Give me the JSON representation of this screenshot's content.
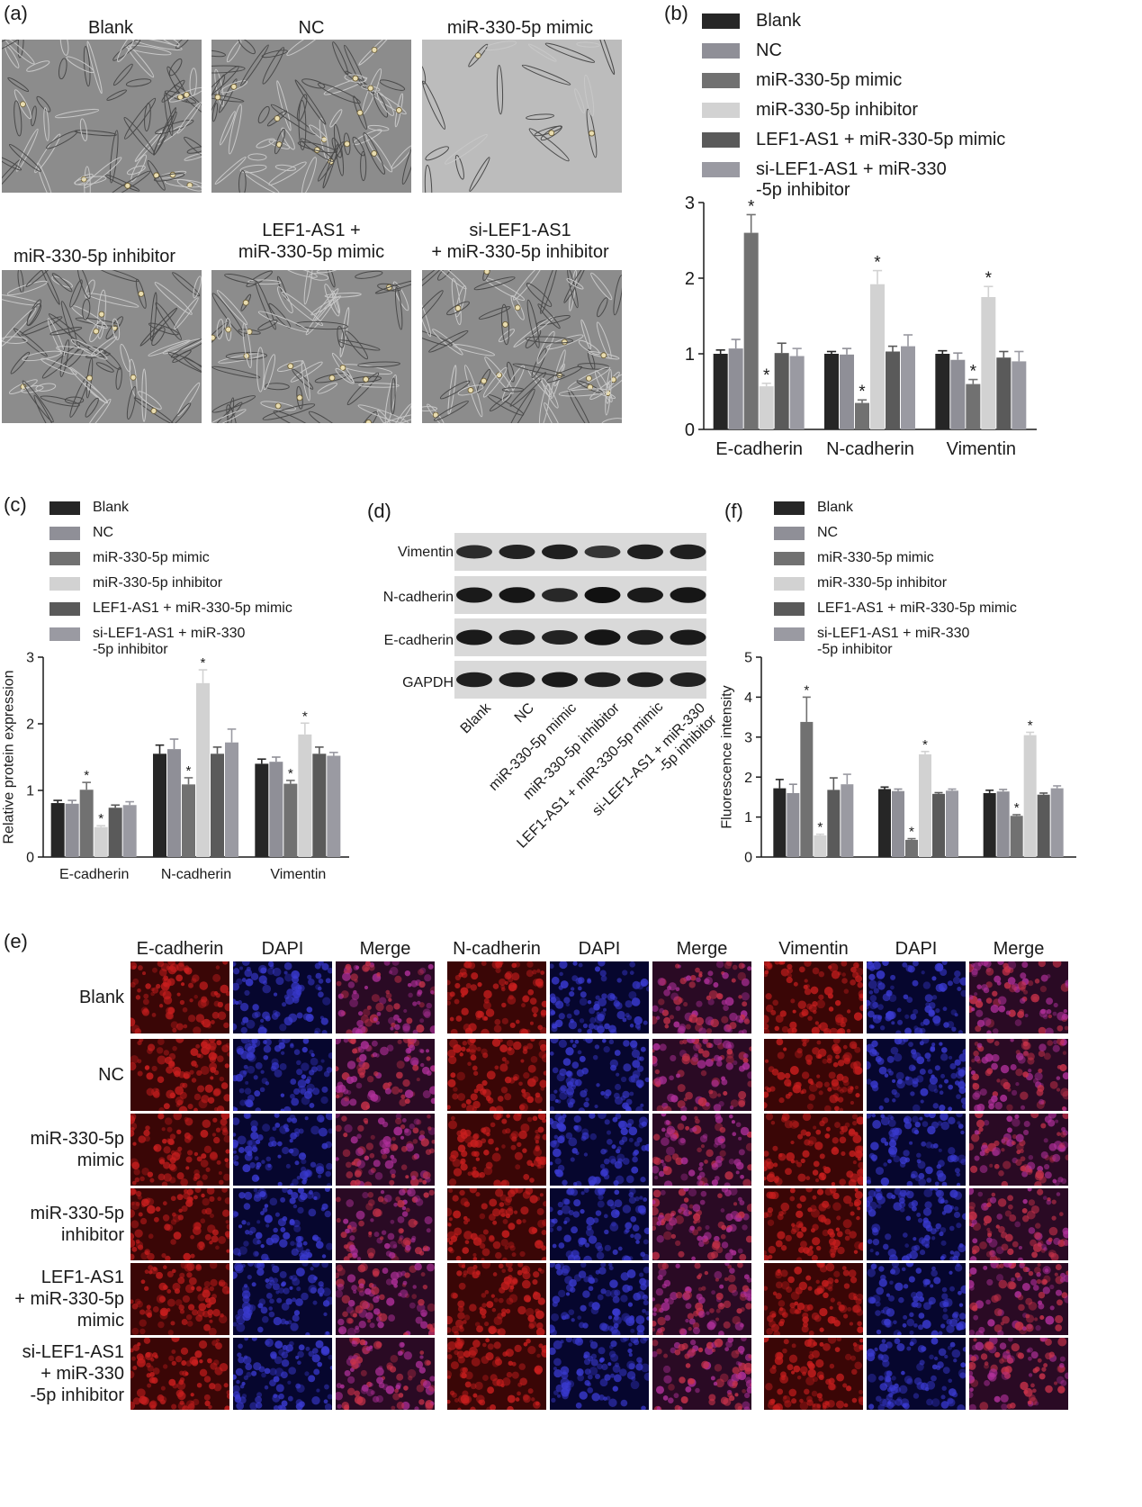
{
  "panel_labels": {
    "a": "(a)",
    "b": "(b)",
    "c": "(c)",
    "d": "(d)",
    "e": "(e)",
    "f": "(f)"
  },
  "panel_a": {
    "titles": [
      "Blank",
      "NC",
      "miR-330-5p mimic",
      "miR-330-5p inhibitor",
      "LEF1-AS1 +\nmiR-330-5p mimic",
      "si-LEF1-AS1\n+ miR-330-5p inhibitor"
    ]
  },
  "legend": [
    {
      "label": "Blank",
      "color": "#262626"
    },
    {
      "label": "NC",
      "color": "#8f8f97"
    },
    {
      "label": "miR-330-5p mimic",
      "color": "#717171"
    },
    {
      "label": "miR-330-5p inhibitor",
      "color": "#d2d2d2"
    },
    {
      "label": "LEF1-AS1 + miR-330-5p mimic",
      "color": "#5a5a5a"
    },
    {
      "label": "si-LEF1-AS1 + miR-330\n-5p inhibitor",
      "color": "#9a9aa2"
    }
  ],
  "colors": {
    "axis": "#1a1a1a",
    "dapi": "#3a3ad0",
    "cadherin": "#c81e1e"
  },
  "chart_data": [
    {
      "id": "b",
      "type": "bar",
      "categories": [
        "E-cadherin",
        "N-cadherin",
        "Vimentin"
      ],
      "series": [
        {
          "name": "Blank",
          "values": [
            1.0,
            1.0,
            1.0
          ],
          "errors": [
            0.05,
            0.03,
            0.04
          ]
        },
        {
          "name": "NC",
          "values": [
            1.07,
            0.99,
            0.92
          ],
          "errors": [
            0.12,
            0.08,
            0.09
          ]
        },
        {
          "name": "miR-330-5p mimic",
          "values": [
            2.6,
            0.35,
            0.6
          ],
          "errors": [
            0.24,
            0.04,
            0.06
          ]
        },
        {
          "name": "miR-330-5p inhibitor",
          "values": [
            0.57,
            1.92,
            1.75
          ],
          "errors": [
            0.04,
            0.18,
            0.14
          ]
        },
        {
          "name": "LEF1-AS1 + miR-330-5p mimic",
          "values": [
            1.01,
            1.03,
            0.95
          ],
          "errors": [
            0.13,
            0.07,
            0.08
          ]
        },
        {
          "name": "si-LEF1-AS1 + miR-330\n-5p inhibitor",
          "values": [
            0.97,
            1.1,
            0.9
          ],
          "errors": [
            0.1,
            0.15,
            0.13
          ]
        }
      ],
      "significant": [
        [
          false,
          false,
          true,
          true,
          false,
          false
        ],
        [
          false,
          false,
          true,
          true,
          false,
          false
        ],
        [
          false,
          false,
          true,
          true,
          false,
          false
        ]
      ],
      "ylim": [
        0,
        3
      ],
      "yticks": [
        "0",
        "1",
        "2",
        "3"
      ],
      "ylabel": "",
      "sig_mark": "*"
    },
    {
      "id": "c",
      "type": "bar",
      "categories": [
        "E-cadherin",
        "N-cadherin",
        "Vimentin"
      ],
      "series": [
        {
          "name": "Blank",
          "values": [
            0.81,
            1.55,
            1.4
          ],
          "errors": [
            0.04,
            0.13,
            0.07
          ]
        },
        {
          "name": "NC",
          "values": [
            0.8,
            1.62,
            1.43
          ],
          "errors": [
            0.05,
            0.15,
            0.07
          ]
        },
        {
          "name": "miR-330-5p mimic",
          "values": [
            1.01,
            1.09,
            1.1
          ],
          "errors": [
            0.11,
            0.1,
            0.05
          ]
        },
        {
          "name": "miR-330-5p inhibitor",
          "values": [
            0.45,
            2.61,
            1.84
          ],
          "errors": [
            0.02,
            0.2,
            0.17
          ]
        },
        {
          "name": "LEF1-AS1 + miR-330-5p mimic",
          "values": [
            0.74,
            1.55,
            1.55
          ],
          "errors": [
            0.04,
            0.1,
            0.1
          ]
        },
        {
          "name": "si-LEF1-AS1 + miR-330\n-5p inhibitor",
          "values": [
            0.78,
            1.72,
            1.52
          ],
          "errors": [
            0.05,
            0.2,
            0.05
          ]
        }
      ],
      "significant": [
        [
          false,
          false,
          true,
          true,
          false,
          false
        ],
        [
          false,
          false,
          true,
          true,
          false,
          false
        ],
        [
          false,
          false,
          true,
          true,
          false,
          false
        ]
      ],
      "ylim": [
        0,
        3
      ],
      "yticks": [
        "0",
        "1",
        "2",
        "3"
      ],
      "ylabel": "Relative protein expression",
      "sig_mark": "*"
    },
    {
      "id": "f",
      "type": "bar",
      "categories": [
        "",
        "",
        ""
      ],
      "series": [
        {
          "name": "Blank",
          "values": [
            1.72,
            1.7,
            1.6
          ],
          "errors": [
            0.22,
            0.05,
            0.07
          ]
        },
        {
          "name": "NC",
          "values": [
            1.6,
            1.65,
            1.64
          ],
          "errors": [
            0.22,
            0.05,
            0.05
          ]
        },
        {
          "name": "miR-330-5p mimic",
          "values": [
            3.38,
            0.43,
            1.03
          ],
          "errors": [
            0.62,
            0.03,
            0.03
          ]
        },
        {
          "name": "miR-330-5p inhibitor",
          "values": [
            0.54,
            2.57,
            3.05
          ],
          "errors": [
            0.03,
            0.07,
            0.07
          ]
        },
        {
          "name": "LEF1-AS1 + miR-330-5p mimic",
          "values": [
            1.68,
            1.58,
            1.56
          ],
          "errors": [
            0.3,
            0.03,
            0.04
          ]
        },
        {
          "name": "si-LEF1-AS1 + miR-330\n-5p inhibitor",
          "values": [
            1.82,
            1.66,
            1.72
          ],
          "errors": [
            0.25,
            0.04,
            0.06
          ]
        }
      ],
      "significant": [
        [
          false,
          false,
          true,
          true,
          false,
          false
        ],
        [
          false,
          false,
          true,
          true,
          false,
          false
        ],
        [
          false,
          false,
          true,
          true,
          false,
          false
        ]
      ],
      "ylim": [
        0,
        5
      ],
      "yticks": [
        "0",
        "1",
        "2",
        "3",
        "4",
        "5"
      ],
      "ylabel": "Fluorescence intensity",
      "sig_mark": "*"
    }
  ],
  "panel_d": {
    "bands": [
      "Vimentin",
      "N-cadherin",
      "E-cadherin",
      "GAPDH"
    ],
    "lanes": [
      "Blank",
      "NC",
      "miR-330-5p mimic",
      "miR-330-5p inhibitor",
      "LEF1-AS1 + miR-330-5p mimic",
      "si-LEF1-AS1 + miR-330\n-5p inhibitor"
    ]
  },
  "panel_e": {
    "column_groups": [
      [
        "E-cadherin",
        "DAPI",
        "Merge"
      ],
      [
        "N-cadherin",
        "DAPI",
        "Merge"
      ],
      [
        "Vimentin",
        "DAPI",
        "Merge"
      ]
    ],
    "rows": [
      "Blank",
      "NC",
      "miR-330-5p\nmimic",
      "miR-330-5p\ninhibitor",
      "LEF1-AS1\n+ miR-330-5p\nmimic",
      "si-LEF1-AS1\n+ miR-330\n-5p inhibitor"
    ]
  }
}
